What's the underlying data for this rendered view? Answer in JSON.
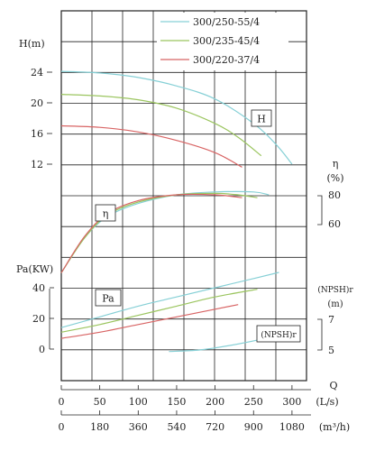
{
  "chart_data": {
    "type": "line",
    "legend": {
      "placement": "top-right",
      "entries": [
        {
          "name": "300/250-55/4",
          "color": "#86d0d6"
        },
        {
          "name": "300/235-45/4",
          "color": "#9bc55f"
        },
        {
          "name": "300/220-37/4",
          "color": "#d86464"
        }
      ]
    },
    "x_axis": {
      "label": "Q",
      "primary": {
        "unit": "(L/s)",
        "ticks": [
          "0",
          "50",
          "100",
          "150",
          "200",
          "250",
          "300"
        ],
        "range": [
          0,
          310
        ]
      },
      "secondary": {
        "unit": "(m³/h)",
        "ticks": [
          "0",
          "180",
          "360",
          "540",
          "720",
          "900",
          "1080"
        ]
      }
    },
    "head_axis": {
      "label": "H(m)",
      "ticks": [
        "24",
        "20",
        "16",
        "12"
      ],
      "range": [
        12,
        24
      ]
    },
    "eff_axis": {
      "label": "η",
      "unit": "(%)",
      "ticks": [
        "80",
        "60"
      ]
    },
    "power_axis": {
      "label": "Pa(KW)",
      "ticks": [
        "40",
        "20",
        "0"
      ],
      "range": [
        0,
        40
      ]
    },
    "npsh_axis": {
      "label": "(NPSH)r",
      "unit": "(m)",
      "ticks": [
        "7",
        "5"
      ]
    },
    "curve_labels": {
      "head": "H",
      "efficiency": "η",
      "power": "Pa",
      "npsh": "(NPSH)r"
    },
    "series": [
      {
        "name": "300/250-55/4",
        "color": "#86d0d6",
        "head": [
          [
            0,
            24.1
          ],
          [
            50,
            23.9
          ],
          [
            100,
            23.3
          ],
          [
            150,
            22.2
          ],
          [
            200,
            20.5
          ],
          [
            250,
            17.3
          ],
          [
            280,
            14.5
          ],
          [
            300,
            12.0
          ]
        ],
        "efficiency": [
          [
            0,
            26
          ],
          [
            30,
            50
          ],
          [
            60,
            65
          ],
          [
            100,
            74
          ],
          [
            150,
            80
          ],
          [
            200,
            82
          ],
          [
            250,
            82
          ],
          [
            270,
            80
          ]
        ],
        "power": [
          [
            0,
            14
          ],
          [
            50,
            21
          ],
          [
            100,
            28
          ],
          [
            150,
            34
          ],
          [
            200,
            40
          ],
          [
            250,
            46
          ],
          [
            283,
            50
          ]
        ],
        "npsh": [
          [
            140,
            4.9
          ],
          [
            180,
            5.0
          ],
          [
            220,
            5.3
          ],
          [
            260,
            5.7
          ],
          [
            280,
            6.0
          ]
        ]
      },
      {
        "name": "300/235-45/4",
        "color": "#9bc55f",
        "head": [
          [
            0,
            21.1
          ],
          [
            50,
            20.9
          ],
          [
            100,
            20.4
          ],
          [
            150,
            19.3
          ],
          [
            200,
            17.3
          ],
          [
            230,
            15.5
          ],
          [
            260,
            13.1
          ]
        ],
        "efficiency": [
          [
            0,
            26
          ],
          [
            30,
            50
          ],
          [
            60,
            66
          ],
          [
            100,
            75
          ],
          [
            150,
            80
          ],
          [
            200,
            81
          ],
          [
            230,
            80
          ],
          [
            255,
            78
          ]
        ],
        "power": [
          [
            0,
            11
          ],
          [
            50,
            16
          ],
          [
            100,
            22
          ],
          [
            150,
            28
          ],
          [
            200,
            34
          ],
          [
            255,
            39
          ]
        ]
      },
      {
        "name": "300/220-37/4",
        "color": "#d86464",
        "head": [
          [
            0,
            17.0
          ],
          [
            50,
            16.8
          ],
          [
            100,
            16.2
          ],
          [
            150,
            15.1
          ],
          [
            200,
            13.5
          ],
          [
            235,
            11.6
          ]
        ],
        "efficiency": [
          [
            0,
            26
          ],
          [
            30,
            51
          ],
          [
            60,
            67
          ],
          [
            100,
            76
          ],
          [
            150,
            80
          ],
          [
            200,
            80
          ],
          [
            235,
            78
          ]
        ],
        "power": [
          [
            0,
            7
          ],
          [
            50,
            11
          ],
          [
            100,
            16
          ],
          [
            150,
            21
          ],
          [
            200,
            26
          ],
          [
            230,
            29
          ]
        ]
      }
    ]
  }
}
